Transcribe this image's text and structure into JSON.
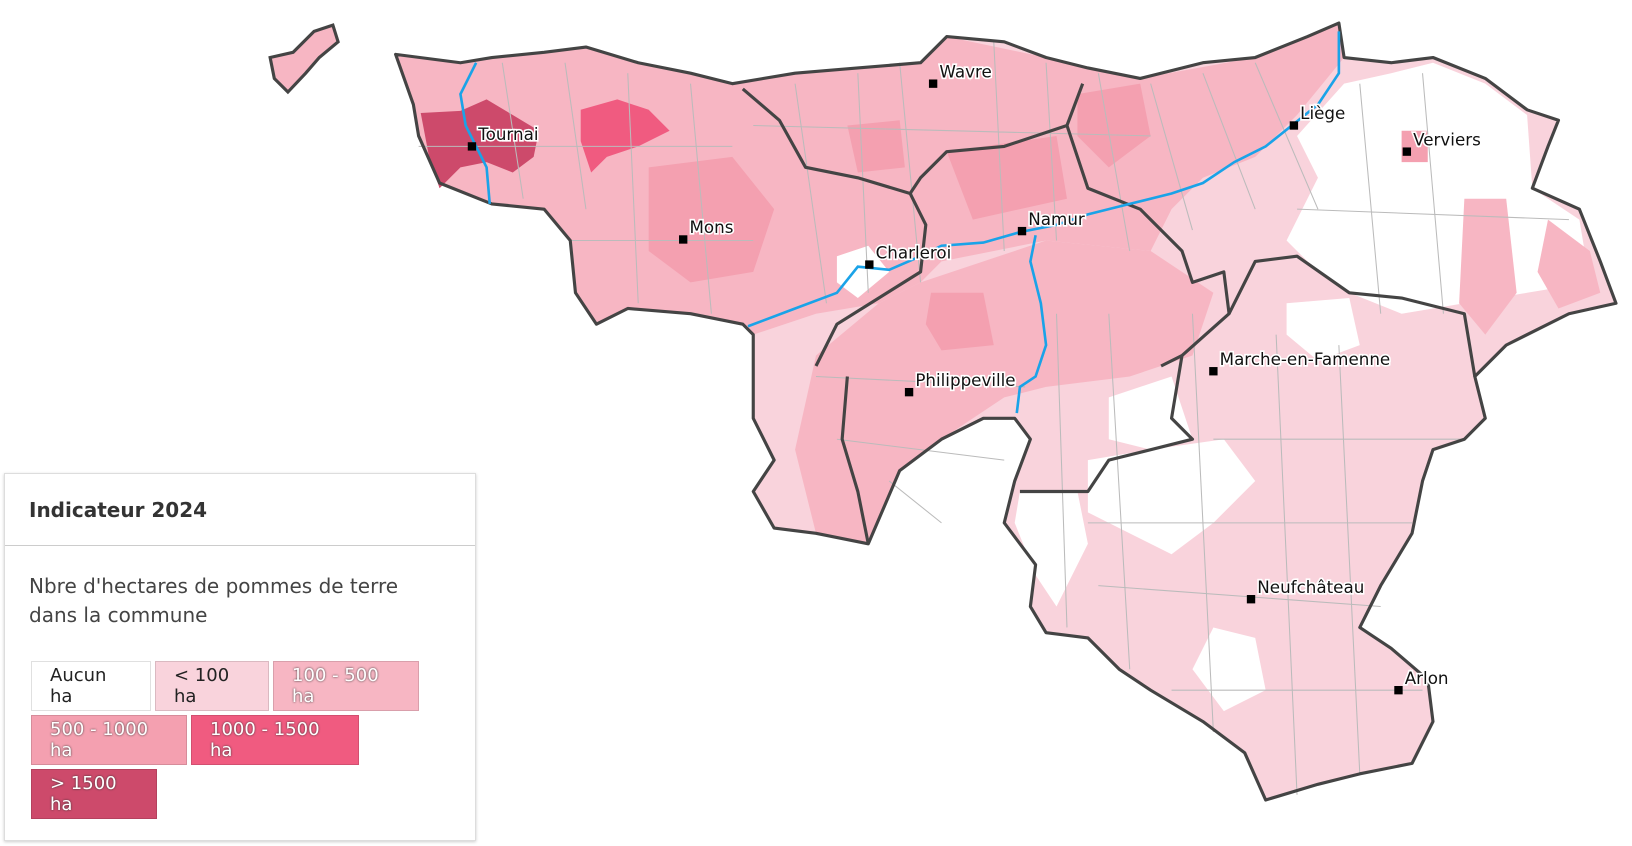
{
  "map": {
    "cities": [
      {
        "name": "Wavre"
      },
      {
        "name": "Tournai"
      },
      {
        "name": "Liège"
      },
      {
        "name": "Verviers"
      },
      {
        "name": "Mons"
      },
      {
        "name": "Namur"
      },
      {
        "name": "Charleroi"
      },
      {
        "name": "Marche-en-Famenne"
      },
      {
        "name": "Philippeville"
      },
      {
        "name": "Neufchâteau"
      },
      {
        "name": "Arlon"
      }
    ],
    "colors": {
      "border": "#444444",
      "commune_line": "#bbbbbb",
      "river": "#1aa3e8"
    }
  },
  "legend": {
    "title": "Indicateur 2024",
    "description": "Nbre d'hectares de pommes de terre dans la commune",
    "classes": [
      {
        "label": "Aucun ha",
        "color": "#ffffff"
      },
      {
        "label": "< 100 ha",
        "color": "#f9d3dc"
      },
      {
        "label": "100 - 500 ha",
        "color": "#f7b6c3"
      },
      {
        "label": "500 - 1000 ha",
        "color": "#f4a0b0"
      },
      {
        "label": "1000 - 1500 ha",
        "color": "#f05b80"
      },
      {
        "label": "> 1500 ha",
        "color": "#cd4a6b"
      }
    ]
  }
}
